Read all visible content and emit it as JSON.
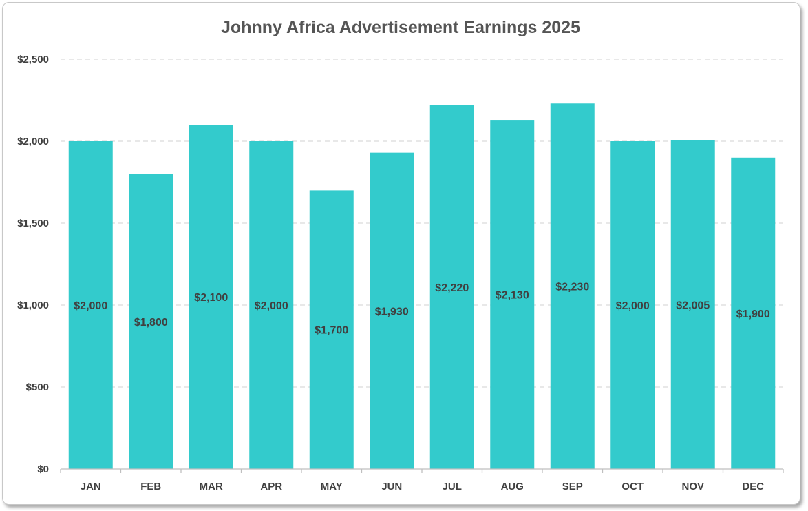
{
  "chart_data": {
    "type": "bar",
    "title": "Johnny Africa Advertisement Earnings 2025",
    "xlabel": "",
    "ylabel": "",
    "categories": [
      "JAN",
      "FEB",
      "MAR",
      "APR",
      "MAY",
      "JUN",
      "JUL",
      "AUG",
      "SEP",
      "OCT",
      "NOV",
      "DEC"
    ],
    "values": [
      2000,
      1800,
      2100,
      2000,
      1700,
      1930,
      2220,
      2130,
      2230,
      2000,
      2005,
      1900
    ],
    "data_labels": [
      "$2,000",
      "$1,800",
      "$2,100",
      "$2,000",
      "$1,700",
      "$1,930",
      "$2,220",
      "$2,130",
      "$2,230",
      "$2,000",
      "$2,005",
      "$1,900"
    ],
    "ylim": [
      0,
      2500
    ],
    "yticks": [
      0,
      500,
      1000,
      1500,
      2000,
      2500
    ],
    "ytick_labels": [
      "$0",
      "$500",
      "$1,000",
      "$1,500",
      "$2,000",
      "$2,500"
    ],
    "grid": true,
    "legend": "none",
    "colors": {
      "bar": "#33CBCC",
      "grid": "#d9d9d9",
      "axis": "#bfbfbf",
      "text": "#404040",
      "title": "#555555"
    }
  }
}
